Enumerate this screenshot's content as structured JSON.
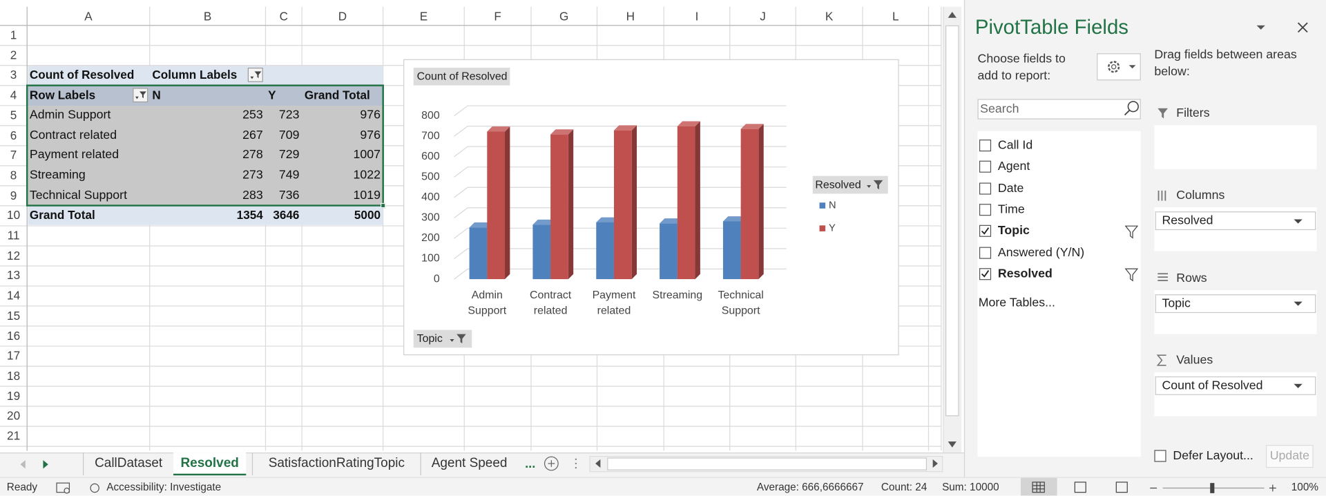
{
  "column_headers": [
    "A",
    "B",
    "C",
    "D",
    "E",
    "F",
    "G",
    "H",
    "I",
    "J",
    "K",
    "L"
  ],
  "row_numbers": [
    1,
    2,
    3,
    4,
    5,
    6,
    7,
    8,
    9,
    10,
    11,
    12,
    13,
    14,
    15,
    16,
    17,
    18,
    19,
    20,
    21
  ],
  "pivot": {
    "corner": "Count of Resolved",
    "column_labels": "Column Labels",
    "row_labels": "Row Labels",
    "columns": [
      "N",
      "Y",
      "Grand Total"
    ],
    "rows": [
      {
        "label": "Admin Support",
        "values": [
          253,
          723,
          976
        ]
      },
      {
        "label": "Contract related",
        "values": [
          267,
          709,
          976
        ]
      },
      {
        "label": "Payment related",
        "values": [
          278,
          729,
          1007
        ]
      },
      {
        "label": "Streaming",
        "values": [
          273,
          749,
          1022
        ]
      },
      {
        "label": "Technical Support",
        "values": [
          283,
          736,
          1019
        ]
      }
    ],
    "grand_total": {
      "label": "Grand Total",
      "values": [
        1354,
        3646,
        5000
      ]
    }
  },
  "chart_data": {
    "type": "bar",
    "title": "Count of Resolved",
    "categories": [
      "Admin Support",
      "Contract related",
      "Payment related",
      "Streaming",
      "Technical Support"
    ],
    "series": [
      {
        "name": "N",
        "color": "#4f81bd",
        "values": [
          253,
          267,
          278,
          273,
          283
        ]
      },
      {
        "name": "Y",
        "color": "#c0504d",
        "values": [
          723,
          709,
          729,
          749,
          736
        ]
      }
    ],
    "ylim": [
      0,
      800
    ],
    "yticks": [
      0,
      100,
      200,
      300,
      400,
      500,
      600,
      700,
      800
    ],
    "grid": true,
    "legend_title": "Resolved",
    "axis_field": "Topic"
  },
  "field_pane": {
    "title": "PivotTable Fields",
    "choose_label": "Choose fields to add to report:",
    "drag_label": "Drag fields between areas below:",
    "search_placeholder": "Search",
    "fields": [
      {
        "name": "Call Id",
        "checked": false
      },
      {
        "name": "Agent",
        "checked": false
      },
      {
        "name": "Date",
        "checked": false
      },
      {
        "name": "Time",
        "checked": false
      },
      {
        "name": "Topic",
        "checked": true
      },
      {
        "name": "Answered (Y/N)",
        "checked": false
      },
      {
        "name": "Resolved",
        "checked": true
      }
    ],
    "more_tables": "More Tables...",
    "areas": [
      {
        "name": "Filters"
      },
      {
        "name": "Columns",
        "items": [
          "Resolved"
        ]
      },
      {
        "name": "Rows",
        "items": [
          "Topic"
        ]
      },
      {
        "name": "Values",
        "items": [
          "Count of Resolved"
        ]
      }
    ],
    "defer_layout": "Defer Layout...",
    "update": "Update"
  },
  "sheet_tabs": {
    "tabs": [
      "CallDataset",
      "Resolved",
      "SatisfactionRatingTopic",
      "Agent Speed"
    ],
    "active": 1,
    "more": "..."
  },
  "status_bar": {
    "ready": "Ready",
    "accessibility": "Accessibility: Investigate",
    "average": "Average: 666,6666667",
    "count": "Count: 24",
    "sum": "Sum: 10000",
    "zoom": "100%"
  }
}
